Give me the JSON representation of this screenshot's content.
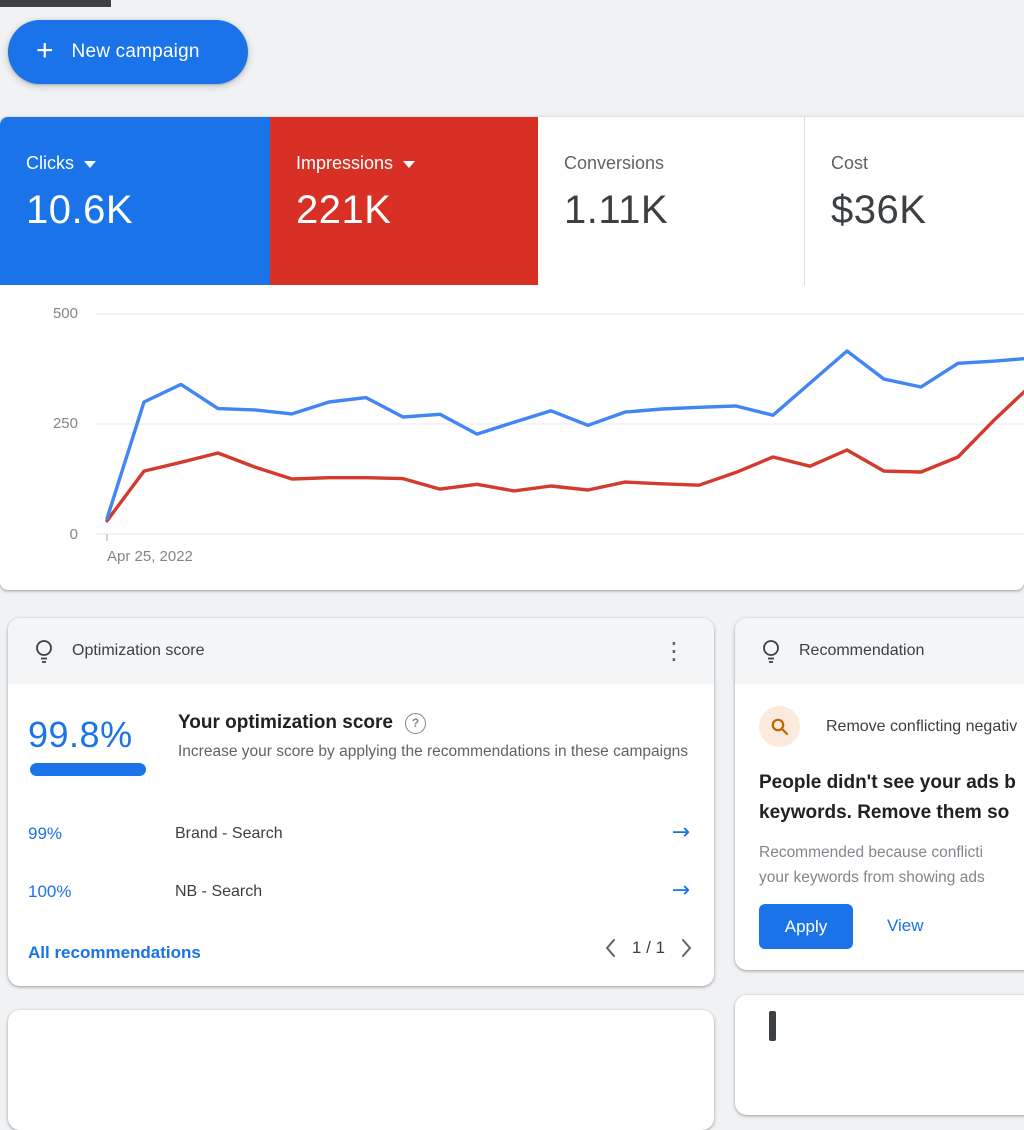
{
  "toolbar": {
    "new_campaign_label": "New campaign",
    "plus_icon": "+"
  },
  "metrics": {
    "cards": [
      {
        "label": "Clicks",
        "value": "10.6K",
        "state": "selected",
        "bg": "#1a73e8"
      },
      {
        "label": "Impressions",
        "value": "221K",
        "state": "selected",
        "bg": "#d93025"
      },
      {
        "label": "Conversions",
        "value": "1.11K",
        "state": "plain",
        "bg": "#ffffff"
      },
      {
        "label": "Cost",
        "value": "$36K",
        "state": "plain",
        "bg": "#ffffff"
      }
    ]
  },
  "chart_data": {
    "type": "line",
    "title": "",
    "xlabel": "",
    "ylabel": "",
    "ylim": [
      0,
      500
    ],
    "yticks": [
      "0",
      "250",
      "500"
    ],
    "grid": true,
    "legend_position": "none",
    "x_start_label": "Apr 25, 2022",
    "x": [
      0,
      1,
      2,
      3,
      4,
      5,
      6,
      7,
      8,
      9,
      10,
      11,
      12,
      13,
      14,
      15,
      16,
      17,
      18,
      19,
      20,
      21,
      22,
      23,
      24,
      25
    ],
    "series": [
      {
        "name": "Clicks",
        "color": "#4285f4",
        "values": [
          35,
          300,
          340,
          285,
          282,
          273,
          300,
          310,
          266,
          272,
          227,
          254,
          280,
          247,
          277,
          284,
          288,
          291,
          270,
          343,
          416,
          352,
          334,
          388,
          393,
          400
        ]
      },
      {
        "name": "Impressions",
        "color": "#d33b2c",
        "values": [
          30,
          143,
          163,
          184,
          152,
          125,
          128,
          128,
          126,
          102,
          113,
          98,
          109,
          100,
          118,
          114,
          111,
          140,
          175,
          154,
          191,
          143,
          141,
          175,
          261,
          340
        ]
      }
    ]
  },
  "optimization_card": {
    "header": "Optimization score",
    "menu_icon": "⋮",
    "score": "99.8%",
    "score_value": 99.8,
    "title": "Your optimization score",
    "help_icon": "?",
    "description": "Increase your score by applying the recommendations in these campaigns",
    "rows": [
      {
        "score": "99%",
        "name": "Brand - Search",
        "arrow_icon": "→"
      },
      {
        "score": "100%",
        "name": "NB - Search",
        "arrow_icon": "→"
      }
    ],
    "footer_link": "All recommendations",
    "pagination_label": "1 / 1"
  },
  "recommendation_card": {
    "header": "Recommendation",
    "item_title": "Remove conflicting negativ",
    "headline_line1": "People didn't see your ads b",
    "headline_line2": "keywords. Remove them so",
    "reason_line1": "Recommended because conflicti",
    "reason_line2": "your keywords from showing ads",
    "apply_label": "Apply",
    "view_label": "View"
  },
  "colors": {
    "accent_blue": "#1a73e8",
    "accent_red": "#d93025",
    "text_dark": "#3c4043",
    "text_gray": "#5f6368",
    "background": "#f0f2f4"
  }
}
